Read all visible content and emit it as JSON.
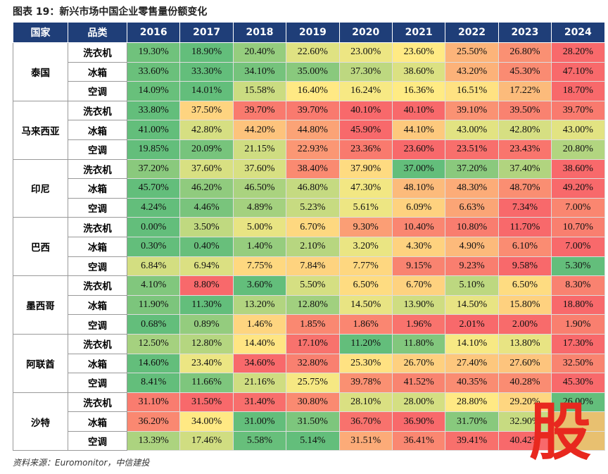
{
  "title": "图表 19：新兴市场中国企业零售量份额变化",
  "table": {
    "header": [
      "国家",
      "品类",
      "2016",
      "2017",
      "2018",
      "2019",
      "2020",
      "2021",
      "2022",
      "2023",
      "2024"
    ],
    "groups": [
      {
        "country": "泰国",
        "rows": [
          {
            "category": "洗衣机",
            "values": [
              "19.30%",
              "18.90%",
              "20.40%",
              "22.60%",
              "23.00%",
              "23.60%",
              "25.50%",
              "26.80%",
              "28.20%"
            ]
          },
          {
            "category": "冰箱",
            "values": [
              "33.60%",
              "33.30%",
              "34.10%",
              "35.00%",
              "37.30%",
              "38.60%",
              "43.20%",
              "45.30%",
              "47.10%"
            ]
          },
          {
            "category": "空调",
            "values": [
              "14.09%",
              "14.01%",
              "15.58%",
              "16.40%",
              "16.24%",
              "16.36%",
              "16.51%",
              "17.22%",
              "18.70%"
            ]
          }
        ]
      },
      {
        "country": "马来西亚",
        "rows": [
          {
            "category": "洗衣机",
            "values": [
              "33.80%",
              "37.50%",
              "39.70%",
              "39.70%",
              "40.10%",
              "40.10%",
              "39.10%",
              "39.50%",
              "39.70%"
            ]
          },
          {
            "category": "冰箱",
            "values": [
              "41.00%",
              "42.80%",
              "44.20%",
              "44.80%",
              "45.90%",
              "44.10%",
              "43.00%",
              "42.80%",
              "43.00%"
            ]
          },
          {
            "category": "空调",
            "values": [
              "19.85%",
              "20.09%",
              "21.15%",
              "22.93%",
              "23.36%",
              "23.60%",
              "23.51%",
              "23.43%",
              "20.80%"
            ]
          }
        ]
      },
      {
        "country": "印尼",
        "rows": [
          {
            "category": "洗衣机",
            "values": [
              "37.20%",
              "37.60%",
              "37.60%",
              "38.40%",
              "37.90%",
              "37.00%",
              "37.20%",
              "37.40%",
              "38.60%"
            ]
          },
          {
            "category": "冰箱",
            "values": [
              "45.70%",
              "46.20%",
              "46.50%",
              "46.80%",
              "47.30%",
              "48.10%",
              "48.30%",
              "48.70%",
              "49.20%"
            ]
          },
          {
            "category": "空调",
            "values": [
              "4.24%",
              "4.46%",
              "4.89%",
              "5.23%",
              "5.61%",
              "6.09%",
              "6.63%",
              "7.34%",
              "7.00%"
            ]
          }
        ]
      },
      {
        "country": "巴西",
        "rows": [
          {
            "category": "洗衣机",
            "values": [
              "0.00%",
              "3.50%",
              "5.00%",
              "6.70%",
              "9.30%",
              "10.40%",
              "10.80%",
              "11.70%",
              "10.70%"
            ]
          },
          {
            "category": "冰箱",
            "values": [
              "0.30%",
              "0.40%",
              "1.40%",
              "2.10%",
              "3.20%",
              "4.30%",
              "4.90%",
              "6.10%",
              "7.00%"
            ]
          },
          {
            "category": "空调",
            "values": [
              "6.84%",
              "6.94%",
              "7.75%",
              "7.84%",
              "7.77%",
              "9.15%",
              "9.23%",
              "9.58%",
              "5.30%"
            ]
          }
        ]
      },
      {
        "country": "墨西哥",
        "rows": [
          {
            "category": "洗衣机",
            "values": [
              "4.10%",
              "8.80%",
              "3.60%",
              "5.50%",
              "6.50%",
              "6.70%",
              "5.10%",
              "6.50%",
              "8.30%"
            ]
          },
          {
            "category": "冰箱",
            "values": [
              "11.90%",
              "11.30%",
              "13.20%",
              "12.80%",
              "14.50%",
              "13.90%",
              "14.50%",
              "15.80%",
              "18.80%"
            ]
          },
          {
            "category": "空调",
            "values": [
              "0.68%",
              "0.89%",
              "1.46%",
              "1.85%",
              "1.86%",
              "1.96%",
              "2.01%",
              "2.00%",
              "1.90%"
            ]
          }
        ]
      },
      {
        "country": "阿联酋",
        "rows": [
          {
            "category": "洗衣机",
            "values": [
              "12.50%",
              "12.80%",
              "14.40%",
              "17.10%",
              "11.20%",
              "11.80%",
              "14.10%",
              "13.80%",
              "17.30%"
            ]
          },
          {
            "category": "冰箱",
            "values": [
              "14.60%",
              "23.40%",
              "34.60%",
              "32.80%",
              "25.30%",
              "26.70%",
              "27.40%",
              "27.60%",
              "32.50%"
            ]
          },
          {
            "category": "空调",
            "values": [
              "8.41%",
              "11.66%",
              "21.16%",
              "25.75%",
              "39.78%",
              "41.52%",
              "40.35%",
              "40.28%",
              "45.30%"
            ]
          }
        ]
      },
      {
        "country": "沙特",
        "rows": [
          {
            "category": "洗衣机",
            "values": [
              "31.10%",
              "31.50%",
              "31.40%",
              "30.80%",
              "28.10%",
              "28.00%",
              "28.80%",
              "29.20%",
              "26.00%"
            ]
          },
          {
            "category": "冰箱",
            "values": [
              "36.20%",
              "34.00%",
              "31.00%",
              "31.50%",
              "36.70%",
              "36.90%",
              "31.70%",
              "32.90%",
              null
            ]
          },
          {
            "category": "空调",
            "values": [
              "13.39%",
              "17.46%",
              "5.58%",
              "5.14%",
              "31.51%",
              "36.41%",
              "39.41%",
              "40.42%",
              null
            ]
          }
        ]
      }
    ]
  },
  "source": "资料来源：Euromonitor，中信建投",
  "watermark": "股"
}
